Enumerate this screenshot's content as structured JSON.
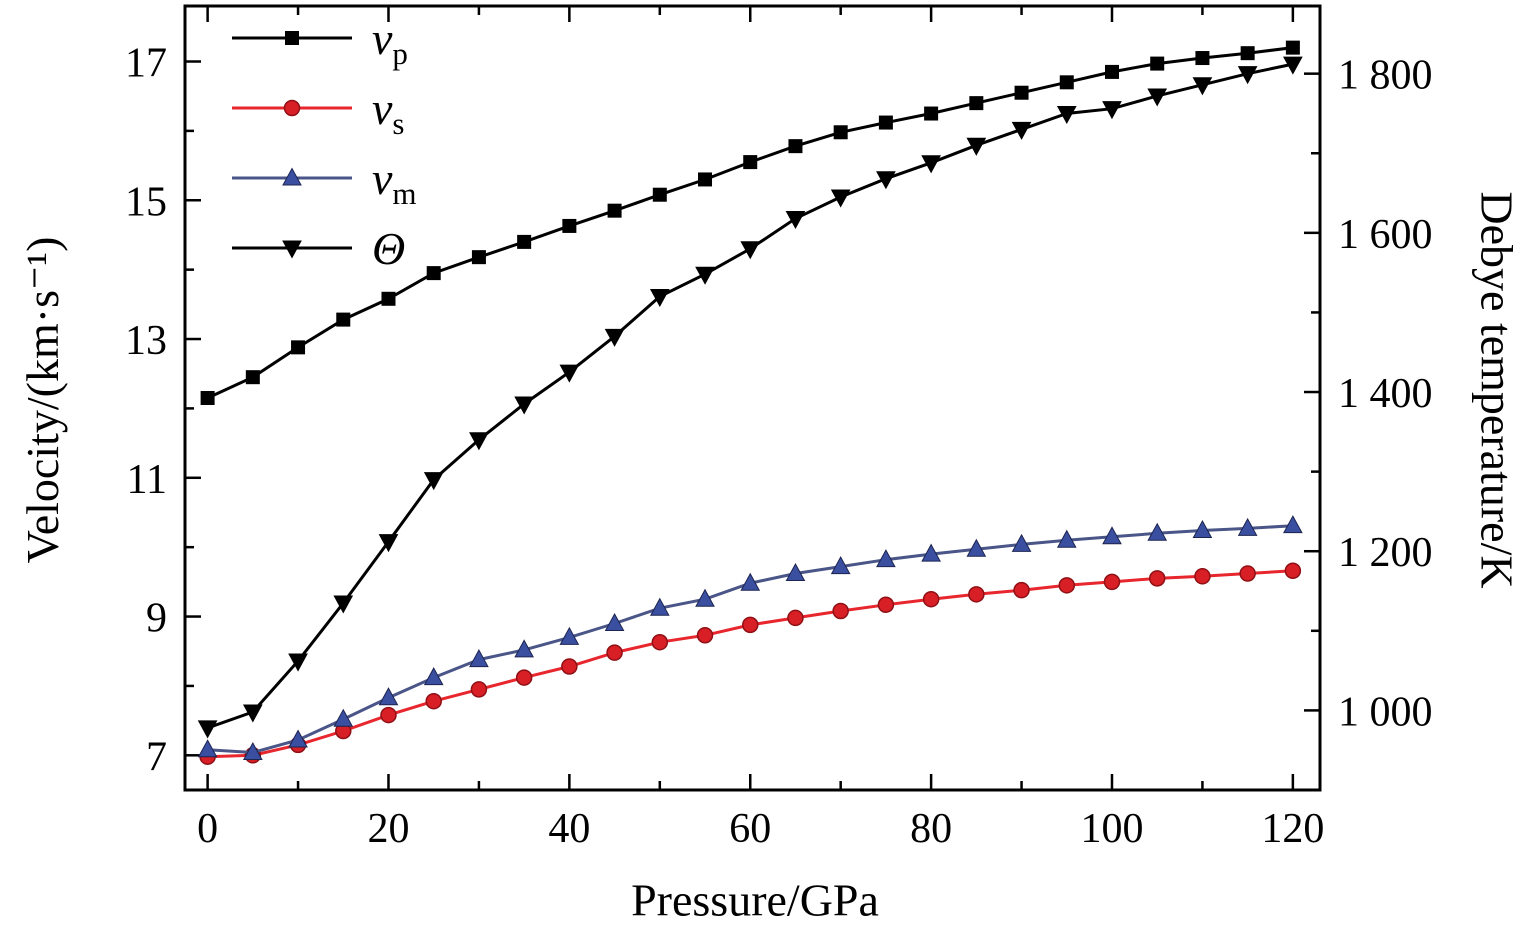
{
  "chart_data": {
    "type": "line",
    "title": "",
    "xlabel": "Pressure/GPa",
    "ylabel_left": "Velocity/(km·s⁻¹)",
    "ylabel_right": "Debye temperature/K",
    "xlim": [
      -2.5,
      123
    ],
    "ylim_left": [
      6.5,
      17.8
    ],
    "ylim_right": [
      900,
      1885
    ],
    "grid": false,
    "legend_position": "top-left",
    "x_ticks": {
      "values": [
        0,
        20,
        40,
        60,
        80,
        100,
        120
      ],
      "labels": [
        "0",
        "20",
        "40",
        "60",
        "80",
        "100",
        "120"
      ],
      "minor": [
        10,
        30,
        50,
        70,
        90,
        110
      ]
    },
    "left_ticks": {
      "values": [
        7,
        9,
        11,
        13,
        15,
        17
      ],
      "labels": [
        "7",
        "9",
        "11",
        "13",
        "15",
        "17"
      ],
      "minor": [
        8,
        10,
        12,
        14,
        16
      ]
    },
    "right_ticks": {
      "values": [
        1000,
        1200,
        1400,
        1600,
        1800
      ],
      "labels": [
        "1 000",
        "1 200",
        "1 400",
        "1 600",
        "1 800"
      ],
      "minor": [
        1100,
        1300,
        1500,
        1700
      ]
    },
    "x": [
      0,
      5,
      10,
      15,
      20,
      25,
      30,
      35,
      40,
      45,
      50,
      55,
      60,
      65,
      70,
      75,
      80,
      85,
      90,
      95,
      100,
      105,
      110,
      115,
      120
    ],
    "series": [
      {
        "name": "vp",
        "label_base": "v",
        "label_sub": "p",
        "axis": "left",
        "marker": "square",
        "line_style": "solid",
        "line_color": "#000000",
        "marker_color": "#000000",
        "marker_edge": "#000000",
        "values": [
          12.15,
          12.45,
          12.88,
          13.28,
          13.58,
          13.95,
          14.18,
          14.4,
          14.63,
          14.85,
          15.08,
          15.3,
          15.55,
          15.78,
          15.98,
          16.12,
          16.25,
          16.4,
          16.55,
          16.7,
          16.85,
          16.97,
          17.05,
          17.12,
          17.2
        ]
      },
      {
        "name": "vs",
        "label_base": "v",
        "label_sub": "s",
        "axis": "left",
        "marker": "circle",
        "line_style": "solid",
        "line_color": "#e8262d",
        "marker_color": "#d81f26",
        "marker_edge": "#8f1015",
        "values": [
          6.98,
          7.0,
          7.15,
          7.35,
          7.58,
          7.78,
          7.95,
          8.12,
          8.28,
          8.48,
          8.63,
          8.73,
          8.88,
          8.98,
          9.08,
          9.17,
          9.25,
          9.32,
          9.38,
          9.45,
          9.5,
          9.55,
          9.58,
          9.62,
          9.66
        ]
      },
      {
        "name": "vm",
        "label_base": "v",
        "label_sub": "m",
        "axis": "left",
        "marker": "triangle-up",
        "line_style": "solid",
        "line_color": "#4a5588",
        "marker_color": "#3a4fa0",
        "marker_edge": "#1c2450",
        "values": [
          7.08,
          7.04,
          7.22,
          7.52,
          7.83,
          8.12,
          8.38,
          8.52,
          8.7,
          8.9,
          9.12,
          9.25,
          9.48,
          9.62,
          9.72,
          9.82,
          9.9,
          9.97,
          10.04,
          10.1,
          10.15,
          10.2,
          10.24,
          10.27,
          10.31
        ]
      },
      {
        "name": "theta",
        "label_base": "Θ",
        "label_sub": "",
        "axis": "right",
        "marker": "triangle-down",
        "line_style": "solid",
        "line_color": "#000000",
        "marker_color": "#000000",
        "marker_edge": "#000000",
        "values": [
          978,
          998,
          1062,
          1135,
          1212,
          1290,
          1340,
          1385,
          1425,
          1470,
          1520,
          1548,
          1580,
          1618,
          1645,
          1668,
          1688,
          1710,
          1730,
          1750,
          1756,
          1772,
          1786,
          1800,
          1812
        ]
      }
    ]
  }
}
